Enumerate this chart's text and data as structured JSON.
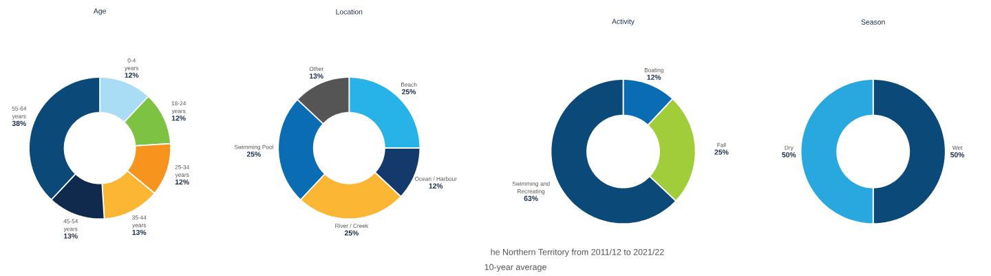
{
  "chart_data": [
    {
      "type": "donut",
      "title": "Age",
      "categories": [
        "0-4 years",
        "18-24 years",
        "25-34 years",
        "35-44 years",
        "45-54 years",
        "55-64 years"
      ],
      "values": [
        12,
        12,
        12,
        13,
        13,
        38
      ],
      "value_labels": [
        "12%",
        "12%",
        "12%",
        "13%",
        "13%",
        "38%"
      ],
      "colors": [
        "#a9dcf5",
        "#7dc242",
        "#f7941d",
        "#fbb634",
        "#0f2a4d",
        "#0b4a78"
      ]
    },
    {
      "type": "donut",
      "title": "Location",
      "categories": [
        "Beach",
        "Ocean / Harbour",
        "River / Creek",
        "Swimming Pool",
        "Other"
      ],
      "values": [
        25,
        12,
        25,
        25,
        13
      ],
      "value_labels": [
        "25%",
        "12%",
        "25%",
        "25%",
        "13%"
      ],
      "colors": [
        "#27b3e8",
        "#143a6b",
        "#fbb634",
        "#0a6db3",
        "#555555"
      ]
    },
    {
      "type": "donut",
      "title": "Activity",
      "categories": [
        "Boating",
        "Fall",
        "Swimming and Recreating"
      ],
      "values": [
        12,
        25,
        63
      ],
      "value_labels": [
        "12%",
        "25%",
        "63%"
      ],
      "colors": [
        "#0a6db3",
        "#a2cd3a",
        "#0b4a78"
      ],
      "annotations": [
        "he Northern Territory from 2011/12 to 2021/22",
        "10-year average"
      ]
    },
    {
      "type": "donut",
      "title": "Season",
      "categories": [
        "Wet",
        "Dry"
      ],
      "values": [
        50,
        50
      ],
      "value_labels": [
        "50%",
        "50%"
      ],
      "colors": [
        "#0b4a78",
        "#29a8e0"
      ]
    }
  ]
}
